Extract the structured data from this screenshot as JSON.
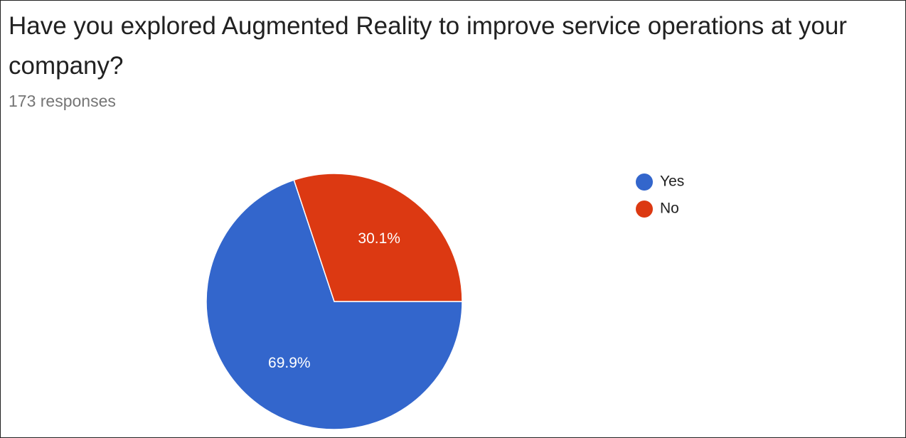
{
  "chart_data": {
    "type": "pie",
    "title": "Have you explored Augmented Reality to improve service operations at your company?",
    "subtitle": "173 responses",
    "categories": [
      "Yes",
      "No"
    ],
    "values": [
      69.9,
      30.1
    ],
    "value_labels": [
      "69.9%",
      "30.1%"
    ],
    "colors": [
      "#3366cc",
      "#dc3912"
    ],
    "legend": "right"
  }
}
